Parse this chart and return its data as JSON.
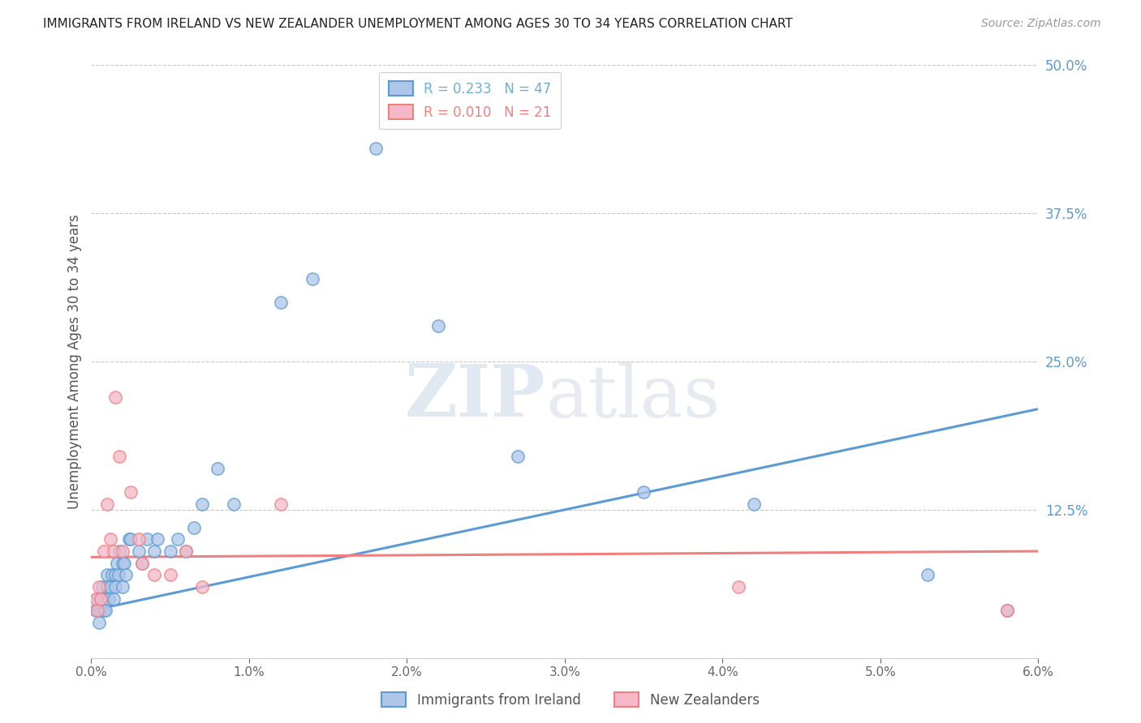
{
  "title": "IMMIGRANTS FROM IRELAND VS NEW ZEALANDER UNEMPLOYMENT AMONG AGES 30 TO 34 YEARS CORRELATION CHART",
  "source": "Source: ZipAtlas.com",
  "ylabel": "Unemployment Among Ages 30 to 34 years",
  "xmin": 0.0,
  "xmax": 0.06,
  "ymin": 0.0,
  "ymax": 0.5,
  "xticks": [
    0.0,
    0.01,
    0.02,
    0.03,
    0.04,
    0.05,
    0.06
  ],
  "xtick_labels": [
    "0.0%",
    "1.0%",
    "2.0%",
    "3.0%",
    "4.0%",
    "5.0%",
    "6.0%"
  ],
  "yticks_right": [
    0.0,
    0.125,
    0.25,
    0.375,
    0.5
  ],
  "ytick_labels_right": [
    "",
    "12.5%",
    "25.0%",
    "37.5%",
    "50.0%"
  ],
  "legend_entries": [
    {
      "label": "R = 0.233   N = 47",
      "color": "#6baed6"
    },
    {
      "label": "R = 0.010   N = 21",
      "color": "#f08080"
    }
  ],
  "blue_scatter_x": [
    0.0003,
    0.0004,
    0.0005,
    0.0006,
    0.0006,
    0.0007,
    0.0008,
    0.0008,
    0.0009,
    0.001,
    0.001,
    0.0011,
    0.0012,
    0.0013,
    0.0014,
    0.0015,
    0.0015,
    0.0016,
    0.0017,
    0.0018,
    0.002,
    0.002,
    0.0021,
    0.0022,
    0.0024,
    0.0025,
    0.003,
    0.0032,
    0.0035,
    0.004,
    0.0042,
    0.005,
    0.0055,
    0.006,
    0.0065,
    0.007,
    0.008,
    0.009,
    0.012,
    0.014,
    0.018,
    0.022,
    0.027,
    0.035,
    0.042,
    0.053,
    0.058
  ],
  "blue_scatter_y": [
    0.04,
    0.05,
    0.03,
    0.05,
    0.04,
    0.06,
    0.04,
    0.05,
    0.04,
    0.06,
    0.07,
    0.05,
    0.06,
    0.07,
    0.05,
    0.07,
    0.06,
    0.08,
    0.07,
    0.09,
    0.06,
    0.08,
    0.08,
    0.07,
    0.1,
    0.1,
    0.09,
    0.08,
    0.1,
    0.09,
    0.1,
    0.09,
    0.1,
    0.09,
    0.11,
    0.13,
    0.16,
    0.13,
    0.3,
    0.32,
    0.43,
    0.28,
    0.17,
    0.14,
    0.13,
    0.07,
    0.04
  ],
  "pink_scatter_x": [
    0.0003,
    0.0004,
    0.0005,
    0.0006,
    0.0008,
    0.001,
    0.0012,
    0.0014,
    0.0015,
    0.0018,
    0.002,
    0.0025,
    0.003,
    0.0032,
    0.004,
    0.005,
    0.006,
    0.007,
    0.012,
    0.041,
    0.058
  ],
  "pink_scatter_y": [
    0.05,
    0.04,
    0.06,
    0.05,
    0.09,
    0.13,
    0.1,
    0.09,
    0.22,
    0.17,
    0.09,
    0.14,
    0.1,
    0.08,
    0.07,
    0.07,
    0.09,
    0.06,
    0.13,
    0.06,
    0.04
  ],
  "blue_trend_x": [
    0.0,
    0.06
  ],
  "blue_trend_y": [
    0.04,
    0.21
  ],
  "pink_trend_x": [
    0.0,
    0.06
  ],
  "pink_trend_y": [
    0.085,
    0.09
  ],
  "watermark_zip": "ZIP",
  "watermark_atlas": "atlas",
  "blue_color": "#5b9bd5",
  "pink_color": "#f08080",
  "blue_scatter_facecolor": "#aec6e8",
  "pink_scatter_facecolor": "#f4b8c8",
  "background_color": "#ffffff",
  "grid_color": "#c8c8c8",
  "title_color": "#222222",
  "axis_label_color": "#555555",
  "right_axis_color": "#5b9bd5",
  "watermark_color_zip": "#c8d8e8",
  "watermark_color_atlas": "#c8d4e0"
}
